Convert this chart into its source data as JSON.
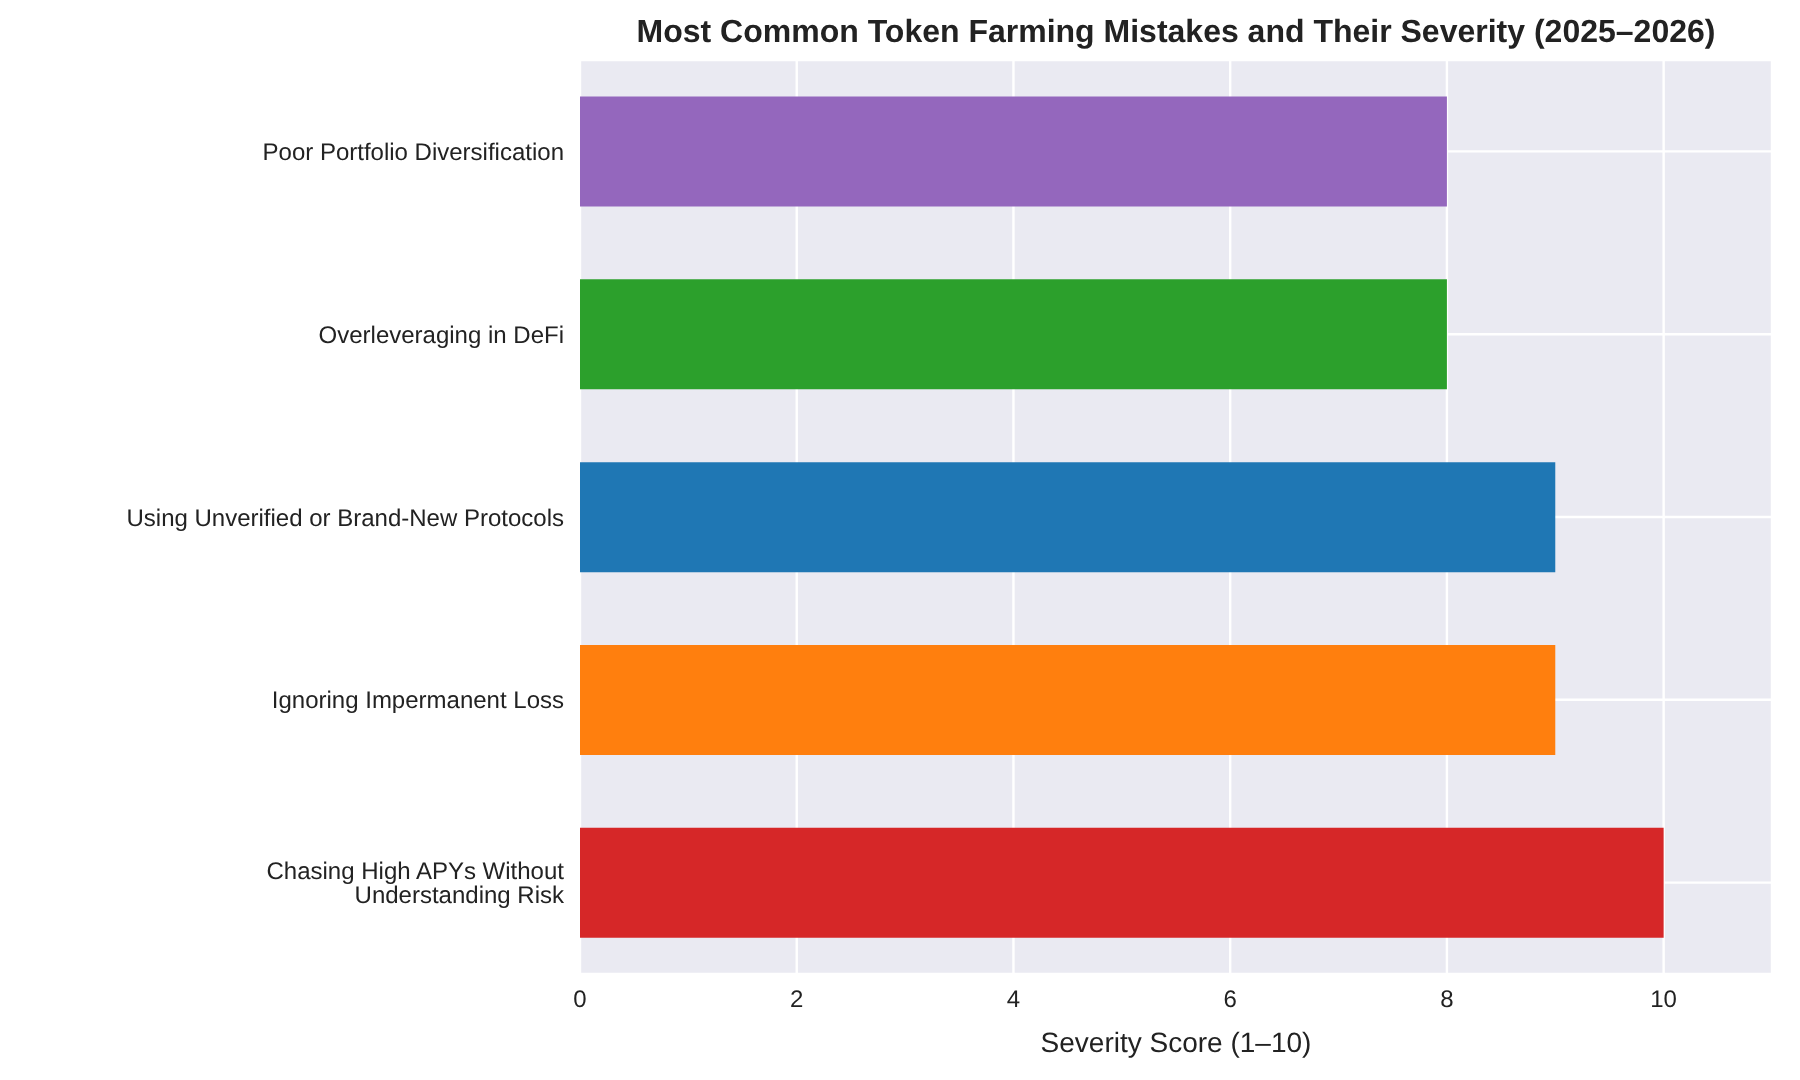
{
  "chart_data": {
    "type": "bar",
    "orientation": "horizontal",
    "title": "Most Common Token Farming Mistakes and Their Severity (2025–2026)",
    "xlabel": "Severity Score (1–10)",
    "categories": [
      "Poor Portfolio Diversification",
      "Overleveraging in DeFi",
      "Using Unverified or Brand-New Protocols",
      "Ignoring Impermanent Loss",
      "Chasing High APYs Without Understanding Risk"
    ],
    "values": [
      8,
      8,
      9,
      9,
      10
    ],
    "colors": [
      "#9467bd",
      "#2ca02c",
      "#1f77b4",
      "#ff7f0e",
      "#d62728"
    ],
    "xlim": [
      0,
      11
    ],
    "xticks": [
      0,
      2,
      4,
      6,
      8,
      10
    ],
    "grid": true
  }
}
